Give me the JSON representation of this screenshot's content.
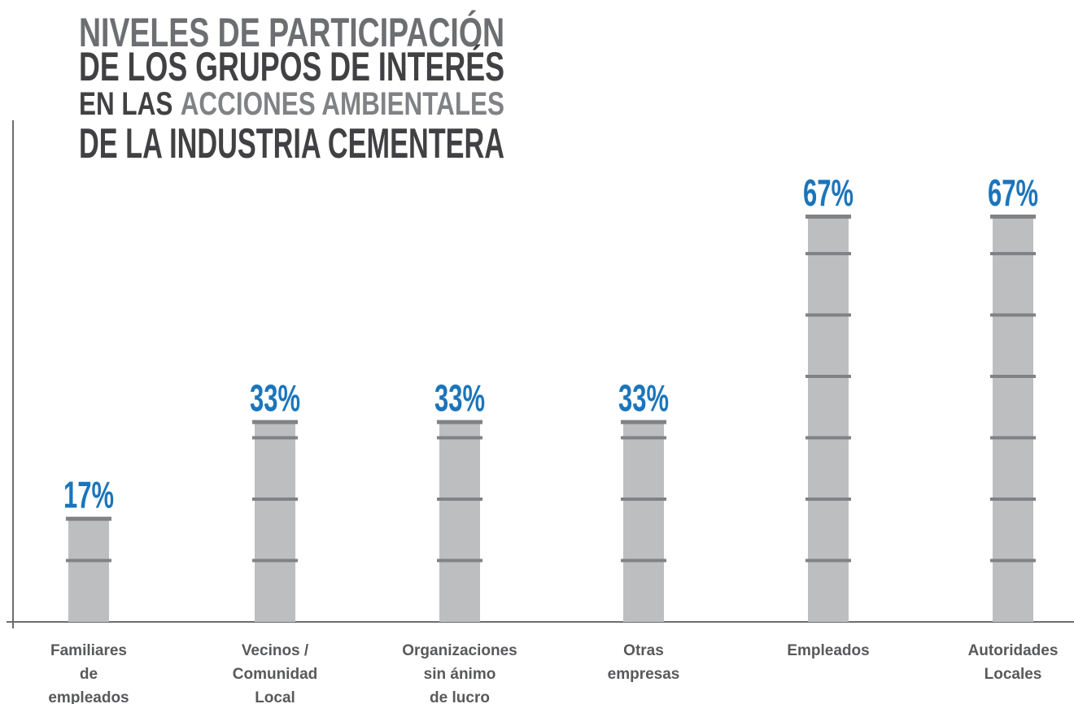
{
  "chart_data": {
    "type": "bar",
    "title_lines": [
      [
        {
          "text": "NIVELES DE PARTICIPACIÓN",
          "color": "#6d6e71"
        }
      ],
      [
        {
          "text": "DE LOS GRUPOS DE INTERÉS",
          "color": "#414042"
        }
      ],
      [
        {
          "text": "EN LAS",
          "color": "#414042"
        },
        {
          "text": "ACCIONES AMBIENTALES",
          "color": "#808285"
        }
      ],
      [
        {
          "text": "DE LA INDUSTRIA CEMENTERA",
          "color": "#414042"
        }
      ]
    ],
    "categories": [
      "Familiares\nde\nempleados",
      "Vecinos /\nComunidad\nLocal",
      "Organizaciones\nsin ánimo\nde lucro",
      "Otras\nempresas",
      "Empleados",
      "Autoridades\nLocales"
    ],
    "values": [
      17,
      33,
      33,
      33,
      67,
      67
    ],
    "value_labels": [
      "17%",
      "33%",
      "33%",
      "33%",
      "67%",
      "67%"
    ],
    "color": "#bcbec0",
    "band_color": "#808285",
    "label_color": "#1b75bc",
    "ylim": [
      0,
      83
    ]
  }
}
